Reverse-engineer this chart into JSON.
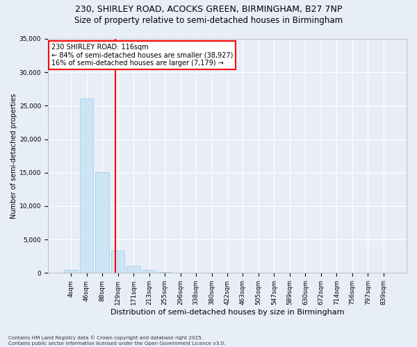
{
  "title_line1": "230, SHIRLEY ROAD, ACOCKS GREEN, BIRMINGHAM, B27 7NP",
  "title_line2": "Size of property relative to semi-detached houses in Birmingham",
  "xlabel": "Distribution of semi-detached houses by size in Birmingham",
  "ylabel": "Number of semi-detached properties",
  "categories": [
    "4sqm",
    "46sqm",
    "88sqm",
    "129sqm",
    "171sqm",
    "213sqm",
    "255sqm",
    "296sqm",
    "338sqm",
    "380sqm",
    "422sqm",
    "463sqm",
    "505sqm",
    "547sqm",
    "589sqm",
    "630sqm",
    "672sqm",
    "714sqm",
    "756sqm",
    "797sqm",
    "839sqm"
  ],
  "values": [
    400,
    26100,
    15100,
    3350,
    1050,
    420,
    150,
    50,
    10,
    5,
    3,
    2,
    1,
    0,
    0,
    0,
    0,
    0,
    0,
    0,
    0
  ],
  "bar_color": "#cce5f5",
  "bar_edge_color": "#99ccee",
  "vline_color": "red",
  "annotation_text": "230 SHIRLEY ROAD: 116sqm\n← 84% of semi-detached houses are smaller (38,927)\n16% of semi-detached houses are larger (7,179) →",
  "ylim": [
    0,
    35000
  ],
  "yticks": [
    0,
    5000,
    10000,
    15000,
    20000,
    25000,
    30000,
    35000
  ],
  "background_color": "#e8eef8",
  "plot_background_color": "#e8eef8",
  "grid_color": "#ffffff",
  "title1_fontsize": 9,
  "title2_fontsize": 8.5,
  "ylabel_fontsize": 7,
  "xlabel_fontsize": 8,
  "tick_fontsize": 6.5,
  "ann_fontsize": 7,
  "footnote": "Contains HM Land Registry data © Crown copyright and database right 2025.\nContains public sector information licensed under the Open Government Licence v3.0."
}
